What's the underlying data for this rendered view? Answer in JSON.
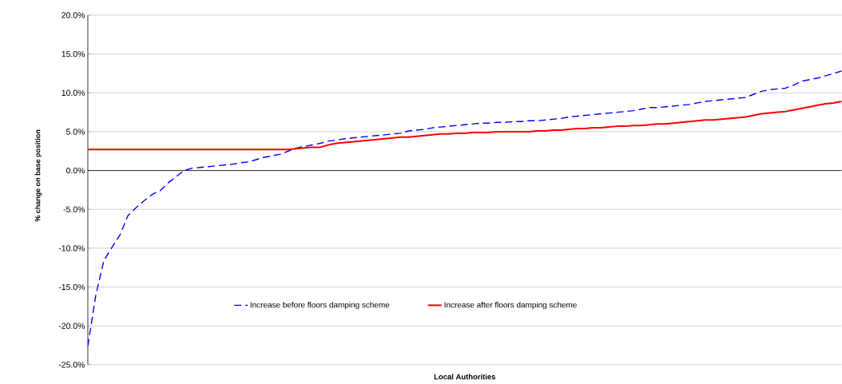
{
  "chart_data": {
    "type": "line",
    "xlabel": "Local Authorities",
    "ylabel": "% change on base position",
    "categories": [
      null,
      null,
      null,
      null,
      null,
      null,
      null,
      null,
      null,
      null,
      null,
      null,
      null,
      null,
      null,
      null,
      null,
      null,
      null,
      null,
      null,
      null,
      null,
      null,
      null,
      null,
      null,
      null,
      null,
      null,
      null,
      null,
      null,
      null,
      null,
      null,
      null,
      null,
      null,
      null,
      null,
      null,
      null,
      null,
      null,
      null,
      null,
      null,
      null,
      null,
      null,
      null,
      null,
      null,
      null,
      null,
      null,
      null,
      null,
      null,
      null,
      null,
      null,
      null,
      null,
      null,
      null,
      null,
      null,
      null,
      null,
      null,
      null,
      null,
      null,
      null,
      null,
      null,
      null,
      null,
      null,
      null,
      null,
      null,
      null,
      null,
      null,
      null,
      null,
      null,
      null,
      null,
      null,
      null,
      null
    ],
    "series": [
      {
        "name": "Increase before floors damping scheme",
        "color": "#0000ff",
        "line_style": "dashed",
        "values": [
          -22.6,
          -16.0,
          -11.6,
          -9.9,
          -8.3,
          -5.8,
          -4.8,
          -3.9,
          -3.1,
          -2.6,
          -1.6,
          -0.8,
          0.0,
          0.3,
          0.4,
          0.5,
          0.6,
          0.7,
          0.8,
          1.0,
          1.1,
          1.4,
          1.7,
          1.9,
          2.1,
          2.5,
          2.9,
          3.1,
          3.3,
          3.5,
          3.8,
          3.9,
          4.1,
          4.2,
          4.3,
          4.4,
          4.5,
          4.6,
          4.7,
          4.8,
          5.1,
          5.2,
          5.3,
          5.5,
          5.6,
          5.7,
          5.8,
          5.9,
          6.0,
          6.1,
          6.1,
          6.2,
          6.2,
          6.3,
          6.3,
          6.4,
          6.4,
          6.5,
          6.6,
          6.7,
          6.9,
          7.0,
          7.1,
          7.2,
          7.3,
          7.4,
          7.5,
          7.6,
          7.7,
          7.9,
          8.1,
          8.1,
          8.2,
          8.3,
          8.4,
          8.5,
          8.7,
          8.9,
          9.0,
          9.1,
          9.2,
          9.3,
          9.4,
          9.8,
          10.2,
          10.4,
          10.5,
          10.6,
          11.0,
          11.5,
          11.7,
          11.9,
          12.2,
          12.5,
          12.8
        ]
      },
      {
        "name": "Increase after floors damping scheme",
        "color": "#ff0000",
        "line_style": "solid",
        "values": [
          2.7,
          2.7,
          2.7,
          2.7,
          2.7,
          2.7,
          2.7,
          2.7,
          2.7,
          2.7,
          2.7,
          2.7,
          2.7,
          2.7,
          2.7,
          2.7,
          2.7,
          2.7,
          2.7,
          2.7,
          2.7,
          2.7,
          2.7,
          2.7,
          2.7,
          2.7,
          2.8,
          2.9,
          3.0,
          3.0,
          3.3,
          3.5,
          3.6,
          3.7,
          3.8,
          3.9,
          4.0,
          4.1,
          4.2,
          4.3,
          4.3,
          4.4,
          4.5,
          4.6,
          4.7,
          4.7,
          4.8,
          4.8,
          4.9,
          4.9,
          4.9,
          5.0,
          5.0,
          5.0,
          5.0,
          5.0,
          5.1,
          5.1,
          5.2,
          5.2,
          5.3,
          5.4,
          5.4,
          5.5,
          5.5,
          5.6,
          5.7,
          5.7,
          5.8,
          5.8,
          5.9,
          6.0,
          6.0,
          6.1,
          6.2,
          6.3,
          6.4,
          6.5,
          6.5,
          6.6,
          6.7,
          6.8,
          6.9,
          7.1,
          7.3,
          7.4,
          7.5,
          7.6,
          7.8,
          8.0,
          8.2,
          8.4,
          8.6,
          8.7,
          8.9
        ]
      }
    ],
    "ylim": [
      -25,
      20
    ],
    "yticks": [
      {
        "value": -25,
        "label": "-25.0%"
      },
      {
        "value": -20,
        "label": "-20.0%"
      },
      {
        "value": -15,
        "label": "-15.0%"
      },
      {
        "value": -10,
        "label": "-10.0%"
      },
      {
        "value": -5,
        "label": "-5.0%"
      },
      {
        "value": 0,
        "label": "0.0%"
      },
      {
        "value": 5,
        "label": "5.0%"
      },
      {
        "value": 10,
        "label": "10.0%"
      },
      {
        "value": 15,
        "label": "15.0%"
      },
      {
        "value": 20,
        "label": "20.0%"
      }
    ],
    "grid": "y",
    "legend": "bottom",
    "tick_labels": "y",
    "marker": "none"
  }
}
